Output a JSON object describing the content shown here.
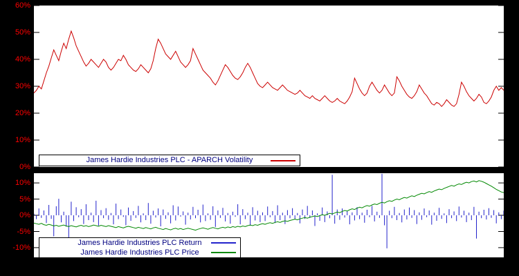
{
  "figure": {
    "background": "#000000",
    "plot_background": "#ffffff",
    "tick_label_color": "#ff0000",
    "legend_text_color": "#000080"
  },
  "chart_data": [
    {
      "type": "line",
      "title": "James Hardie Industries PLC - APARCH Volatility",
      "xlabel": "",
      "ylabel": "",
      "ylim": [
        0,
        60
      ],
      "grid": false,
      "legend_position": "bottom-left-inside",
      "ytick_labels": [
        "60%",
        "50%",
        "40%",
        "30%",
        "20%",
        "10%",
        "0%"
      ],
      "ytick_values": [
        60,
        50,
        40,
        30,
        20,
        10,
        0
      ],
      "series": [
        {
          "name": "James Hardie Industries PLC - APARCH Volatility",
          "type": "line",
          "color": "#cc0000",
          "values": [
            27.5,
            28.5,
            30.0,
            29.0,
            32.0,
            35.0,
            37.5,
            40.5,
            43.5,
            41.5,
            39.5,
            43.0,
            46.0,
            44.0,
            47.5,
            50.5,
            48.0,
            45.0,
            43.0,
            41.0,
            39.0,
            37.5,
            38.5,
            40.0,
            39.0,
            38.0,
            37.0,
            38.5,
            40.0,
            39.0,
            37.0,
            36.0,
            37.0,
            38.5,
            40.0,
            39.5,
            41.5,
            40.0,
            38.0,
            37.0,
            36.0,
            35.5,
            36.5,
            38.0,
            37.0,
            36.0,
            35.0,
            36.5,
            39.5,
            44.0,
            47.5,
            46.0,
            44.0,
            42.0,
            41.0,
            40.0,
            41.5,
            43.0,
            41.0,
            39.0,
            38.0,
            37.0,
            38.0,
            39.5,
            44.0,
            42.0,
            40.0,
            38.0,
            36.0,
            35.0,
            34.0,
            33.0,
            31.5,
            30.5,
            32.0,
            34.0,
            36.0,
            38.0,
            37.0,
            35.5,
            34.0,
            33.0,
            32.5,
            33.5,
            35.0,
            37.0,
            38.5,
            37.0,
            35.0,
            33.0,
            31.0,
            30.0,
            29.5,
            30.5,
            31.5,
            30.5,
            29.5,
            29.0,
            28.5,
            29.5,
            30.5,
            29.5,
            28.5,
            28.0,
            27.5,
            27.0,
            27.5,
            28.5,
            27.5,
            26.5,
            26.0,
            25.5,
            26.5,
            25.5,
            25.0,
            24.5,
            25.5,
            26.5,
            25.5,
            24.5,
            24.0,
            24.5,
            25.5,
            24.5,
            24.0,
            23.5,
            24.5,
            26.0,
            28.0,
            33.0,
            31.0,
            29.0,
            27.5,
            26.5,
            27.5,
            30.0,
            31.5,
            30.0,
            28.5,
            27.5,
            28.5,
            30.5,
            29.0,
            27.5,
            26.5,
            27.5,
            33.5,
            32.0,
            30.0,
            28.5,
            27.0,
            26.0,
            25.5,
            26.5,
            28.0,
            30.5,
            29.0,
            27.5,
            26.5,
            25.0,
            23.5,
            23.0,
            24.0,
            23.5,
            22.5,
            23.5,
            25.0,
            24.0,
            23.0,
            22.5,
            23.5,
            27.0,
            31.5,
            30.0,
            28.0,
            26.5,
            25.5,
            24.5,
            25.5,
            27.0,
            26.0,
            24.0,
            23.5,
            24.5,
            26.0,
            28.5,
            30.0,
            28.5,
            29.5,
            28.5
          ]
        }
      ]
    },
    {
      "type": "mixed",
      "title": "",
      "xlabel": "",
      "ylabel": "",
      "ylim": [
        -13,
        13
      ],
      "grid": false,
      "legend_position": "bottom-left-inside",
      "ytick_labels": [
        "10%",
        "5%",
        "0%",
        "-5%",
        "-10%"
      ],
      "ytick_values": [
        10,
        5,
        0,
        -5,
        -10
      ],
      "series": [
        {
          "name": "James Hardie Industries PLC Return",
          "type": "impulse",
          "color": "#2222cc",
          "values": [
            0.5,
            -1.2,
            2.1,
            -0.8,
            1.5,
            -2.4,
            3.2,
            -1.1,
            -6.5,
            2.8,
            5.1,
            -2.2,
            1.1,
            -3.5,
            -9.2,
            4.2,
            -1.8,
            2.5,
            -0.6,
            1.9,
            -2.7,
            3.4,
            -1.5,
            0.8,
            -2.1,
            4.5,
            -3.2,
            1.6,
            -0.9,
            2.2,
            -1.4,
            0.7,
            -2.8,
            3.6,
            -1.2,
            1.8,
            -0.5,
            -3.1,
            2.4,
            -1.7,
            1.3,
            -0.8,
            2.9,
            -2.2,
            0.6,
            -1.5,
            3.8,
            -2.6,
            1.4,
            -0.7,
            2.1,
            -3.4,
            1.8,
            -1.1,
            0.9,
            -2.5,
            3.1,
            -1.6,
            2.7,
            -0.4,
            1.2,
            -2.9,
            0.8,
            -1.3,
            2.6,
            -0.9,
            1.7,
            -2.2,
            3.3,
            -1.8,
            0.6,
            -1.4,
            2.8,
            -3.6,
            1.5,
            -0.8,
            2.3,
            -1.9,
            0.7,
            -2.6,
            1.1,
            -0.5,
            3.4,
            -2.8,
            1.9,
            -1.2,
            0.8,
            -3.2,
            2.5,
            -1.6,
            1.4,
            -2.1,
            0.9,
            -1.8,
            2.7,
            -0.6,
            1.3,
            -2.4,
            3.1,
            -1.5,
            0.8,
            -2.7,
            1.6,
            -0.9,
            2.2,
            -1.3,
            0.7,
            -2.5,
            1.8,
            -1.1,
            2.9,
            -0.8,
            1.5,
            -3.3,
            0.6,
            -1.7,
            2.4,
            -2.1,
            1.2,
            -0.9,
            12.5,
            -2.6,
            1.8,
            -1.4,
            2.1,
            -0.7,
            1.3,
            -2.8,
            0.9,
            -1.6,
            2.5,
            -1.2,
            0.8,
            -2.3,
            1.7,
            -0.6,
            2.9,
            -1.9,
            1.1,
            -0.8,
            12.8,
            -3.1,
            -10.2,
            1.4,
            -0.9,
            2.6,
            -1.5,
            0.7,
            -2.2,
            1.8,
            -1.3,
            2.4,
            -0.8,
            1.6,
            -2.7,
            0.9,
            -1.4,
            2.1,
            -0.6,
            1.5,
            -2.9,
            0.8,
            -1.7,
            2.3,
            -1.1,
            0.6,
            -2.4,
            1.9,
            -0.9,
            1.2,
            -1.8,
            2.7,
            -0.7,
            1.4,
            -2.1,
            0.8,
            -1.5,
            2.6,
            -7.2,
            1.1,
            -0.9,
            1.7,
            -1.3,
            2.2,
            -0.8,
            1.6,
            -2.5,
            0.9,
            -1.2,
            1.4
          ]
        },
        {
          "name": "James Hardie Industries PLC Price",
          "type": "line",
          "color": "#008800",
          "values": [
            -2.4,
            -2.6,
            -2.8,
            -2.5,
            -2.9,
            -3.1,
            -2.8,
            -3.0,
            -3.3,
            -3.1,
            -3.4,
            -3.2,
            -3.0,
            -3.3,
            -3.5,
            -3.2,
            -3.4,
            -3.6,
            -3.3,
            -3.1,
            -3.4,
            -3.2,
            -3.5,
            -3.3,
            -3.0,
            -3.2,
            -3.4,
            -3.1,
            -3.3,
            -3.5,
            -3.2,
            -3.4,
            -3.6,
            -3.8,
            -3.5,
            -3.7,
            -3.9,
            -3.6,
            -3.4,
            -3.6,
            -3.8,
            -4.0,
            -3.7,
            -3.9,
            -4.1,
            -3.8,
            -4.0,
            -4.2,
            -3.9,
            -3.7,
            -4.0,
            -4.2,
            -4.4,
            -4.1,
            -4.3,
            -4.5,
            -4.2,
            -4.0,
            -4.3,
            -4.1,
            -4.4,
            -4.2,
            -4.0,
            -4.2,
            -4.4,
            -4.6,
            -4.3,
            -4.1,
            -3.9,
            -4.1,
            -4.3,
            -4.0,
            -3.8,
            -4.0,
            -4.2,
            -3.9,
            -3.7,
            -3.9,
            -3.6,
            -3.8,
            -3.5,
            -3.7,
            -3.4,
            -3.6,
            -3.3,
            -3.5,
            -3.2,
            -3.0,
            -3.2,
            -2.9,
            -3.1,
            -2.8,
            -2.6,
            -2.8,
            -2.5,
            -2.3,
            -2.5,
            -2.2,
            -2.0,
            -2.2,
            -1.9,
            -1.7,
            -1.9,
            -1.6,
            -1.4,
            -1.2,
            -1.4,
            -1.1,
            -0.9,
            -0.7,
            -0.9,
            -0.6,
            -0.4,
            -0.2,
            -0.4,
            -0.1,
            0.2,
            0.0,
            0.3,
            0.6,
            0.4,
            0.7,
            1.0,
            0.8,
            1.2,
            1.5,
            1.3,
            1.7,
            2.0,
            1.8,
            2.2,
            2.5,
            2.3,
            2.7,
            3.0,
            2.8,
            3.2,
            3.5,
            3.3,
            3.7,
            4.0,
            3.8,
            4.2,
            4.5,
            4.3,
            4.7,
            5.0,
            4.8,
            5.2,
            5.5,
            5.3,
            5.7,
            6.0,
            5.8,
            6.2,
            6.5,
            6.8,
            6.6,
            7.0,
            7.3,
            7.1,
            7.5,
            7.8,
            8.1,
            7.9,
            8.3,
            8.6,
            8.9,
            9.2,
            9.0,
            9.4,
            9.7,
            9.5,
            9.9,
            10.2,
            10.0,
            10.4,
            10.6,
            10.3,
            10.7,
            10.5,
            10.2,
            9.8,
            9.4,
            9.0,
            8.5,
            8.0,
            7.6,
            7.2,
            7.0
          ]
        }
      ]
    }
  ]
}
